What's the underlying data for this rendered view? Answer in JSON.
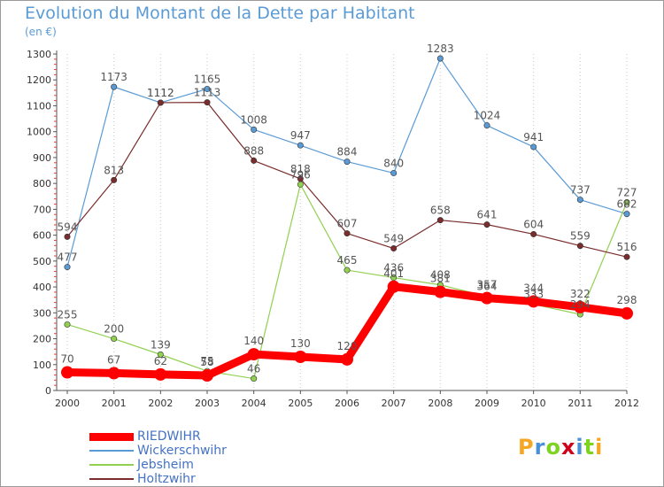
{
  "title": "Evolution du Montant de la Dette par Habitant",
  "unit": "(en €)",
  "logo": "Proxiti",
  "chart_data": {
    "type": "line",
    "x": [
      2000,
      2001,
      2002,
      2003,
      2004,
      2005,
      2006,
      2007,
      2008,
      2009,
      2010,
      2011,
      2012
    ],
    "ylim": [
      0,
      1300
    ],
    "yticks": [
      0,
      100,
      200,
      300,
      400,
      500,
      600,
      700,
      800,
      900,
      1000,
      1100,
      1200,
      1300
    ],
    "grid": "vertical dotted",
    "legend_placement": "bottom-left",
    "series": [
      {
        "name": "RIEDWIHR",
        "color": "#ff0000",
        "values": [
          70,
          67,
          62,
          58,
          140,
          130,
          120,
          401,
          381,
          357,
          344,
          322,
          298
        ]
      },
      {
        "name": "Wickerschwihr",
        "color": "#5b9bd5",
        "values": [
          477,
          1173,
          1112,
          1165,
          1008,
          947,
          884,
          840,
          1283,
          1024,
          941,
          737,
          682
        ]
      },
      {
        "name": "Jebsheim",
        "color": "#92d050",
        "values": [
          255,
          200,
          139,
          75,
          46,
          796,
          465,
          436,
          408,
          364,
          333,
          294,
          727
        ]
      },
      {
        "name": "Holtzwihr",
        "color": "#7b2c2c",
        "values": [
          594,
          813,
          1112,
          1113,
          888,
          818,
          607,
          549,
          658,
          641,
          604,
          559,
          516
        ]
      }
    ]
  }
}
